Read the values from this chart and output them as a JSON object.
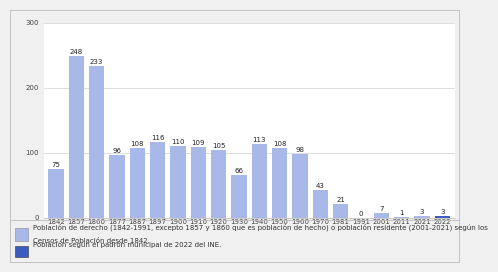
{
  "years": [
    1842,
    1857,
    1860,
    1877,
    1887,
    1897,
    1900,
    1910,
    1920,
    1930,
    1940,
    1950,
    1960,
    1970,
    1981,
    1991,
    2001,
    2011,
    2021,
    2022
  ],
  "values": [
    75,
    248,
    233,
    96,
    108,
    116,
    110,
    109,
    105,
    66,
    113,
    108,
    98,
    43,
    21,
    0,
    7,
    1,
    3,
    3
  ],
  "bar_color_main": "#a8b8e8",
  "bar_color_last": "#3a5bbf",
  "last_bar_index": 19,
  "ylim": [
    0,
    300
  ],
  "yticks": [
    0,
    100,
    200,
    300
  ],
  "bg_color": "#f0f0f0",
  "plot_bg_color": "#ffffff",
  "legend_bg_color": "#f0f0f0",
  "grid_color": "#d0d0d0",
  "border_color": "#bbbbbb",
  "fontsize_bar_label": 5.0,
  "fontsize_ticks": 5.0,
  "fontsize_legend": 5.0,
  "tick_color": "#444444",
  "legend1_box_color": "#a8b8e8",
  "legend1_box_border": "#888888",
  "legend2_box_color": "#3a5bbf",
  "legend2_box_border": "#333333",
  "legend1_line1": "Población de derecho (1842-1991, excepto 1857 y 1860 que es población de hecho) o población residente (2001-2021) según los",
  "legend1_line2": "Censos de Población desde 1842.",
  "legend2_line1": "Población según el padrón municipal de 2022 del INE."
}
